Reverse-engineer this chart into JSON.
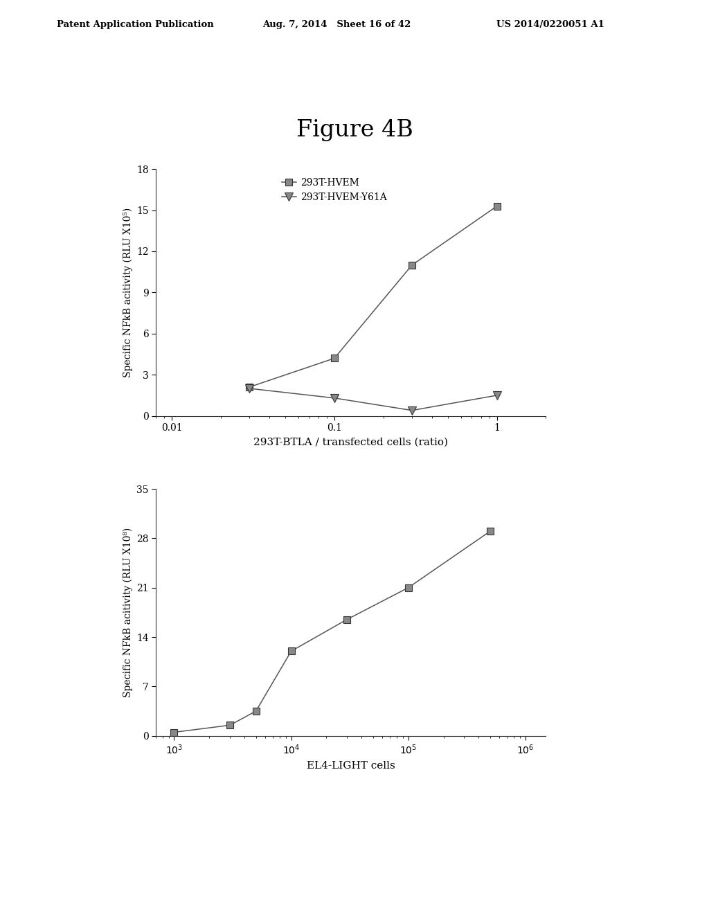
{
  "fig_title": "Figure 4B",
  "header_left": "Patent Application Publication",
  "header_center": "Aug. 7, 2014   Sheet 16 of 42",
  "header_right": "US 2014/0220051 A1",
  "top_plot": {
    "xlabel": "293T-BTLA / transfected cells (ratio)",
    "ylabel": "Specific NFkB acitivity (RLU X10⁵)",
    "ylim": [
      0,
      18
    ],
    "yticks": [
      0,
      3,
      6,
      9,
      12,
      15,
      18
    ],
    "xticks": [
      0.01,
      0.1,
      1
    ],
    "xticklabels": [
      "0.01",
      "0.1",
      "1"
    ],
    "series1_label": "293T-HVEM",
    "series1_x": [
      0.03,
      0.1,
      0.3,
      1.0
    ],
    "series1_y": [
      2.1,
      4.2,
      11.0,
      15.3
    ],
    "series2_label": "293T-HVEM-Y61A",
    "series2_x": [
      0.03,
      0.1,
      0.3,
      1.0
    ],
    "series2_y": [
      2.0,
      1.3,
      0.4,
      1.5
    ],
    "line_color": "#555555",
    "marker_color": "#888888"
  },
  "bottom_plot": {
    "xlabel": "EL4-LIGHT cells",
    "ylabel": "Specific NFkB acitivity (RLU X10⁸)",
    "ylim": [
      0,
      35
    ],
    "yticks": [
      0,
      7,
      14,
      21,
      28,
      35
    ],
    "series_x": [
      1000,
      3000,
      5000,
      10000,
      30000,
      100000,
      500000
    ],
    "series_y": [
      0.5,
      1.5,
      3.5,
      12.0,
      16.5,
      21.0,
      29.0
    ],
    "line_color": "#555555",
    "marker_color": "#888888"
  },
  "background_color": "#ffffff",
  "text_color": "#000000"
}
